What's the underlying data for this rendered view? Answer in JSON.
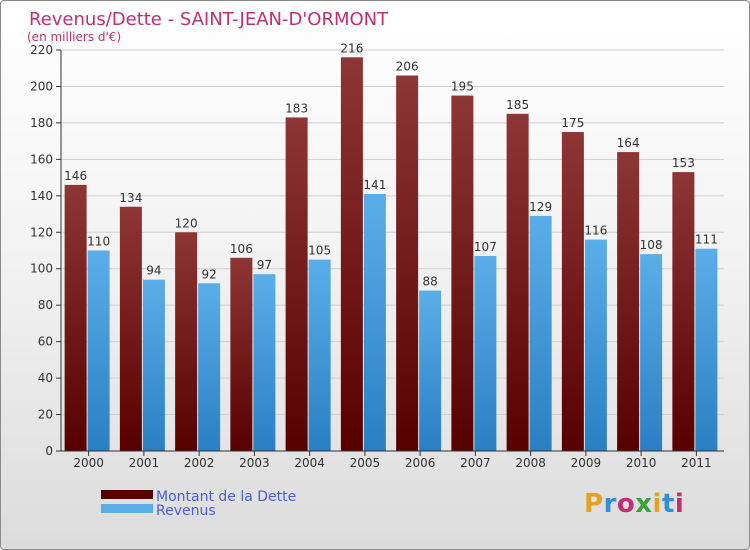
{
  "chart_data": {
    "type": "bar",
    "title": "Revenus/Dette - SAINT-JEAN-D'ORMONT",
    "subtitle": "(en milliers d'€)",
    "categories": [
      "2000",
      "2001",
      "2002",
      "2003",
      "2004",
      "2005",
      "2006",
      "2007",
      "2008",
      "2009",
      "2010",
      "2011"
    ],
    "series": [
      {
        "name": "Montant de la Dette",
        "values": [
          146,
          134,
          120,
          106,
          183,
          216,
          206,
          195,
          185,
          175,
          164,
          153
        ],
        "color_top": "#8e3636",
        "color_bottom": "#570000"
      },
      {
        "name": "Revenus",
        "values": [
          110,
          94,
          92,
          97,
          105,
          141,
          88,
          107,
          129,
          116,
          108,
          111
        ],
        "color_top": "#5aaee8",
        "color_bottom": "#2a7fc4"
      }
    ],
    "ylim": [
      0,
      220
    ],
    "yticks": [
      0,
      20,
      40,
      60,
      80,
      100,
      120,
      140,
      160,
      180,
      200,
      220
    ],
    "grid": true,
    "legend_position": "bottom-left",
    "xlabel": "",
    "ylabel": ""
  },
  "colors": {
    "title": "#c03070",
    "legend_text": "#4a5fd8",
    "axis": "#333333"
  },
  "brand": {
    "letters": [
      "P",
      "r",
      "o",
      "x",
      "i",
      "t",
      "i"
    ],
    "letter_colors": [
      "#e8a020",
      "#2f8fd8",
      "#c03070",
      "#3aa03a",
      "#e8a020",
      "#2f8fd8",
      "#c03070"
    ]
  }
}
